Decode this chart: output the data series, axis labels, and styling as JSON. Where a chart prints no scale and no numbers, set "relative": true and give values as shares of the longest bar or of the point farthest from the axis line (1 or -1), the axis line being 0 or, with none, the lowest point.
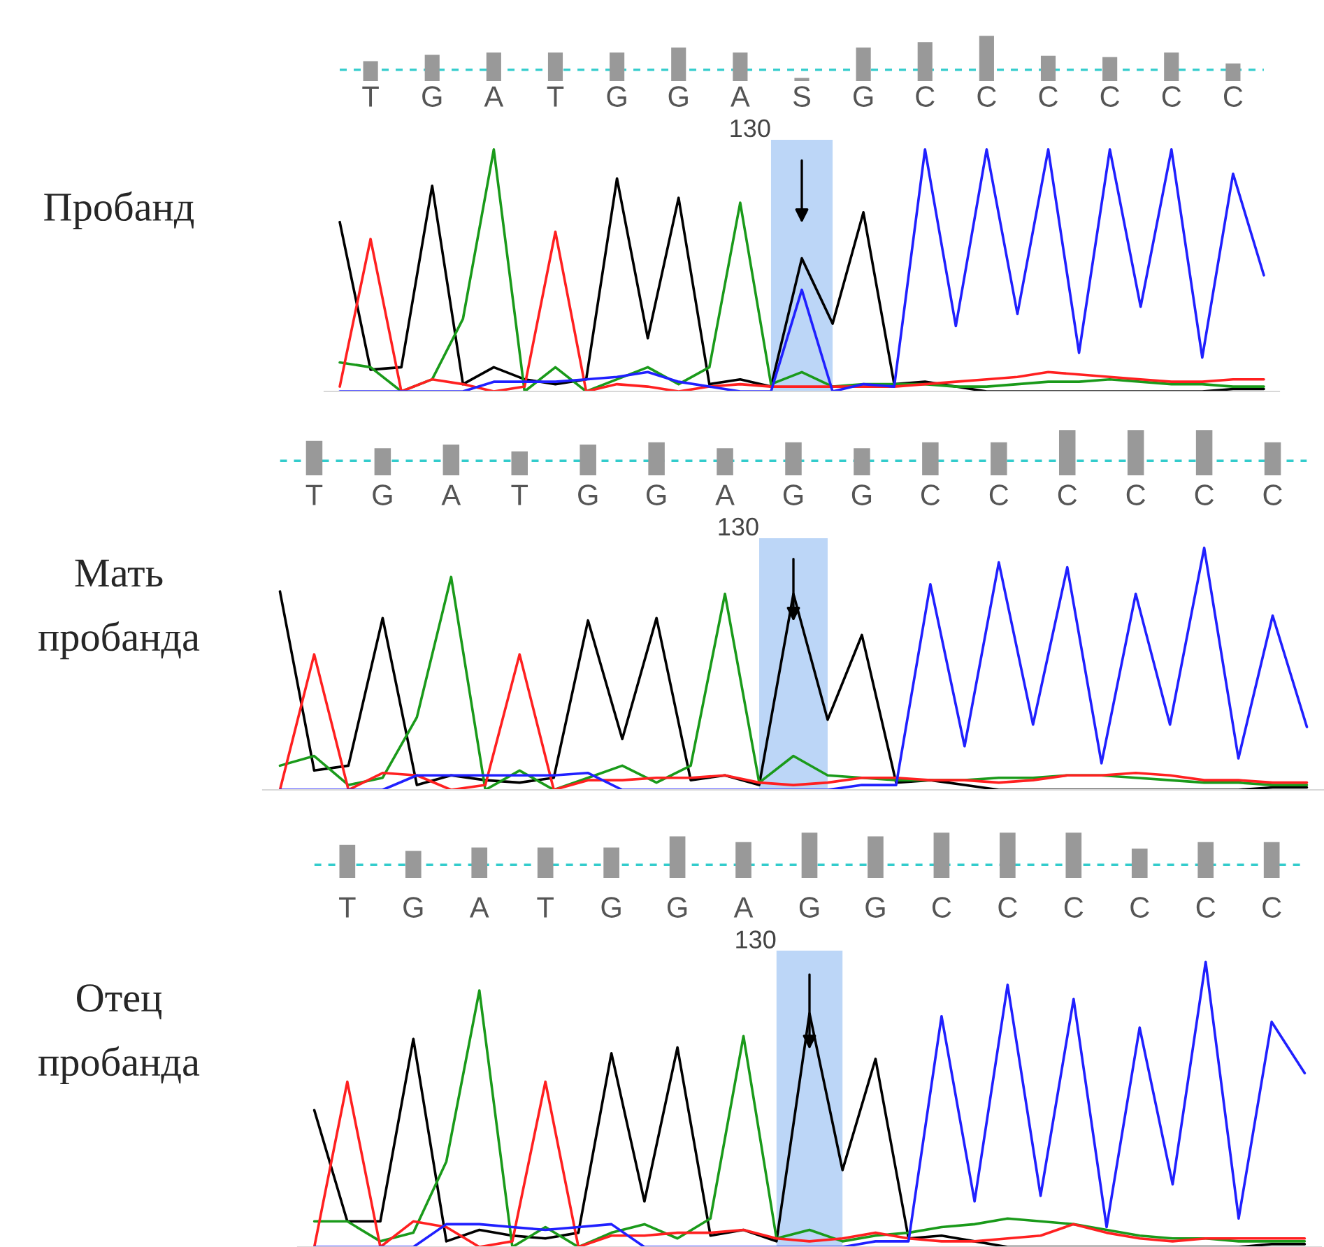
{
  "chart_data": [
    {
      "type": "bar",
      "categories": [
        null,
        null,
        null,
        null,
        null,
        null,
        null,
        null,
        null,
        null,
        null,
        null,
        null,
        null,
        null
      ],
      "values": [
        0.44,
        0.58,
        0.63,
        0.63,
        0.63,
        0.74,
        0.63,
        0.07,
        0.74,
        0.86,
        1.0,
        0.56,
        0.53,
        0.63,
        0.39
      ],
      "color": "#999999",
      "relative": true,
      "tick_labels": false,
      "ref_lines": [
        {
          "axis": "y",
          "value": 0.25,
          "color": "#33cccc",
          "line_style": "dashed"
        }
      ]
    },
    {
      "type": "line",
      "relative": true,
      "ylabel": "Пробанд",
      "categories": [
        null,
        "T",
        null,
        "G",
        null,
        "A",
        null,
        "T",
        null,
        "G",
        null,
        "G",
        null,
        "A",
        null,
        "S",
        null,
        "G",
        null,
        "C",
        null,
        "C",
        null,
        "C",
        null,
        "C",
        null,
        "C",
        null,
        "C",
        null
      ],
      "tick_labels": "x",
      "grid": false,
      "marker": "none",
      "annotations": [
        "130"
      ],
      "series": [
        {
          "color": "#000000",
          "values": [
            0.7,
            0.09,
            0.1,
            0.85,
            0.03,
            0.1,
            0.05,
            0.03,
            0.05,
            0.88,
            0.22,
            0.8,
            0.03,
            0.05,
            0.02,
            0.55,
            0.28,
            0.74,
            0.03,
            0.04,
            0.02,
            0.0,
            0.0,
            0.0,
            0.0,
            0.0,
            0.0,
            0.0,
            0.0,
            0.01,
            0.01
          ]
        },
        {
          "color": "#1a9a1a",
          "values": [
            0.12,
            0.1,
            0.0,
            0.05,
            0.3,
            1.0,
            0.0,
            0.1,
            0.0,
            0.05,
            0.1,
            0.03,
            0.1,
            0.78,
            0.03,
            0.08,
            0.02,
            0.03,
            0.03,
            0.03,
            0.02,
            0.02,
            0.03,
            0.04,
            0.04,
            0.05,
            0.04,
            0.03,
            0.03,
            0.02,
            0.02
          ]
        },
        {
          "color": "#ff2020",
          "values": [
            0.02,
            0.63,
            0.0,
            0.05,
            0.03,
            0.0,
            0.02,
            0.66,
            0.0,
            0.03,
            0.02,
            0.0,
            0.02,
            0.03,
            0.02,
            0.02,
            0.02,
            0.02,
            0.02,
            0.03,
            0.04,
            0.05,
            0.06,
            0.08,
            0.07,
            0.06,
            0.05,
            0.04,
            0.04,
            0.05,
            0.05
          ]
        },
        {
          "color": "#2020ff",
          "values": [
            0.0,
            0.0,
            0.0,
            0.0,
            0.0,
            0.04,
            0.04,
            0.04,
            0.05,
            0.06,
            0.08,
            0.04,
            0.02,
            0.0,
            0.0,
            0.42,
            0.0,
            0.03,
            0.02,
            1.0,
            0.27,
            1.0,
            0.32,
            1.0,
            0.16,
            1.0,
            0.35,
            1.0,
            0.14,
            0.9,
            0.48
          ]
        }
      ]
    },
    {
      "type": "bar",
      "categories": [
        null,
        null,
        null,
        null,
        null,
        null,
        null,
        null,
        null,
        null,
        null,
        null,
        null,
        null,
        null
      ],
      "values": [
        0.76,
        0.6,
        0.68,
        0.53,
        0.68,
        0.73,
        0.6,
        0.73,
        0.6,
        0.73,
        0.73,
        1.0,
        1.0,
        1.0,
        0.73
      ],
      "color": "#999999",
      "relative": true,
      "tick_labels": false,
      "ref_lines": [
        {
          "axis": "y",
          "value": 0.32,
          "color": "#33cccc",
          "line_style": "dashed"
        }
      ]
    },
    {
      "type": "line",
      "relative": true,
      "ylabel": "Мать\nпробанда",
      "categories": [
        null,
        "T",
        null,
        "G",
        null,
        "A",
        null,
        "T",
        null,
        "G",
        null,
        "G",
        null,
        "A",
        null,
        "G",
        null,
        "G",
        null,
        "C",
        null,
        "C",
        null,
        "C",
        null,
        "C",
        null,
        "C",
        null,
        "C",
        null
      ],
      "tick_labels": "x",
      "grid": false,
      "marker": "none",
      "annotations": [
        "130"
      ],
      "series": [
        {
          "color": "#000000",
          "values": [
            0.82,
            0.08,
            0.1,
            0.71,
            0.02,
            0.06,
            0.04,
            0.03,
            0.05,
            0.7,
            0.21,
            0.71,
            0.04,
            0.06,
            0.02,
            0.81,
            0.29,
            0.64,
            0.03,
            0.04,
            0.02,
            0.0,
            0.0,
            0.0,
            0.0,
            0.0,
            0.0,
            0.0,
            0.0,
            0.01,
            0.01
          ]
        },
        {
          "color": "#1a9a1a",
          "values": [
            0.1,
            0.14,
            0.02,
            0.05,
            0.3,
            0.88,
            0.0,
            0.08,
            0.0,
            0.05,
            0.1,
            0.03,
            0.1,
            0.81,
            0.03,
            0.14,
            0.06,
            0.05,
            0.04,
            0.04,
            0.04,
            0.05,
            0.05,
            0.06,
            0.06,
            0.05,
            0.04,
            0.03,
            0.03,
            0.02,
            0.02
          ]
        },
        {
          "color": "#ff2020",
          "values": [
            0.0,
            0.56,
            0.0,
            0.07,
            0.06,
            0.0,
            0.02,
            0.56,
            0.0,
            0.04,
            0.04,
            0.05,
            0.05,
            0.06,
            0.03,
            0.02,
            0.03,
            0.05,
            0.05,
            0.04,
            0.04,
            0.03,
            0.04,
            0.06,
            0.06,
            0.07,
            0.06,
            0.04,
            0.04,
            0.03,
            0.03
          ]
        },
        {
          "color": "#2020ff",
          "values": [
            0.0,
            0.0,
            0.0,
            0.0,
            0.06,
            0.06,
            0.06,
            0.06,
            0.06,
            0.07,
            0.0,
            0.0,
            0.0,
            0.0,
            0.0,
            0.0,
            0.0,
            0.02,
            0.02,
            0.85,
            0.18,
            0.94,
            0.27,
            0.92,
            0.11,
            0.81,
            0.27,
            1.0,
            0.13,
            0.72,
            0.26
          ]
        }
      ]
    },
    {
      "type": "bar",
      "categories": [
        null,
        null,
        null,
        null,
        null,
        null,
        null,
        null,
        null,
        null,
        null,
        null,
        null,
        null,
        null
      ],
      "values": [
        0.73,
        0.6,
        0.67,
        0.67,
        0.67,
        0.92,
        0.79,
        1.0,
        0.92,
        1.0,
        1.0,
        1.0,
        0.65,
        0.79,
        0.79
      ],
      "color": "#999999",
      "relative": true,
      "tick_labels": false,
      "ref_lines": [
        {
          "axis": "y",
          "value": 0.29,
          "color": "#33cccc",
          "line_style": "dashed"
        }
      ]
    },
    {
      "type": "line",
      "relative": true,
      "ylabel": "Отец\nпробанда",
      "categories": [
        null,
        "T",
        null,
        "G",
        null,
        "A",
        null,
        "T",
        null,
        "G",
        null,
        "G",
        null,
        "A",
        null,
        "G",
        null,
        "G",
        null,
        "C",
        null,
        "C",
        null,
        "C",
        null,
        "C",
        null,
        "C",
        null,
        "C",
        null
      ],
      "tick_labels": "x",
      "grid": false,
      "marker": "none",
      "annotations": [
        "130"
      ],
      "series": [
        {
          "color": "#000000",
          "values": [
            0.48,
            0.09,
            0.09,
            0.73,
            0.02,
            0.06,
            0.04,
            0.03,
            0.05,
            0.68,
            0.16,
            0.7,
            0.04,
            0.06,
            0.02,
            0.82,
            0.27,
            0.66,
            0.03,
            0.04,
            0.02,
            0.0,
            0.0,
            0.0,
            0.0,
            0.0,
            0.0,
            0.0,
            0.0,
            0.01,
            0.01
          ]
        },
        {
          "color": "#1a9a1a",
          "values": [
            0.09,
            0.09,
            0.02,
            0.05,
            0.3,
            0.9,
            0.0,
            0.07,
            0.0,
            0.05,
            0.08,
            0.03,
            0.1,
            0.74,
            0.03,
            0.06,
            0.02,
            0.04,
            0.05,
            0.07,
            0.08,
            0.1,
            0.09,
            0.08,
            0.06,
            0.04,
            0.03,
            0.03,
            0.02,
            0.02,
            0.02
          ]
        },
        {
          "color": "#ff2020",
          "values": [
            0.0,
            0.58,
            0.0,
            0.09,
            0.07,
            0.0,
            0.02,
            0.58,
            0.0,
            0.04,
            0.04,
            0.05,
            0.05,
            0.06,
            0.03,
            0.02,
            0.03,
            0.05,
            0.03,
            0.02,
            0.02,
            0.03,
            0.04,
            0.08,
            0.05,
            0.03,
            0.02,
            0.03,
            0.03,
            0.03,
            0.03
          ]
        },
        {
          "color": "#2020ff",
          "values": [
            0.0,
            0.0,
            0.0,
            0.0,
            0.08,
            0.08,
            0.07,
            0.06,
            0.07,
            0.08,
            0.0,
            0.0,
            0.0,
            0.0,
            0.0,
            0.0,
            0.0,
            0.02,
            0.02,
            0.81,
            0.16,
            0.92,
            0.18,
            0.87,
            0.07,
            0.77,
            0.22,
            1.0,
            0.1,
            0.79,
            0.61
          ]
        }
      ]
    }
  ]
}
